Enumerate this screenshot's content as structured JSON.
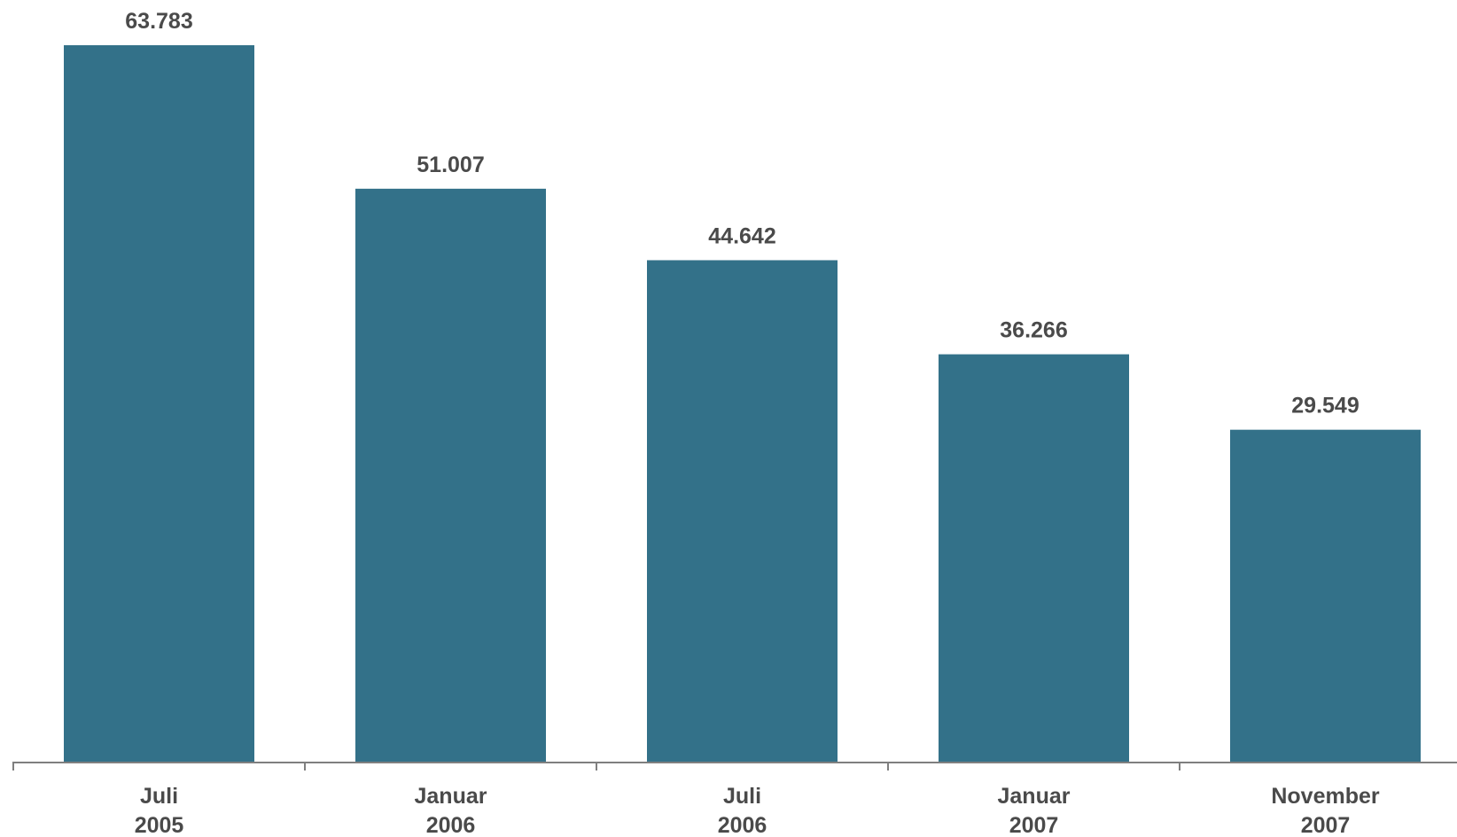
{
  "chart_data": {
    "type": "bar",
    "categories": [
      [
        "Juli",
        "2005"
      ],
      [
        "Januar",
        "2006"
      ],
      [
        "Juli",
        "2006"
      ],
      [
        "Januar",
        "2007"
      ],
      [
        "November",
        "2007"
      ]
    ],
    "values": [
      63783,
      51007,
      44642,
      36266,
      29549
    ],
    "data_labels": [
      "63.783",
      "51.007",
      "44.642",
      "36.266",
      "29.549"
    ],
    "title": "",
    "xlabel": "",
    "ylabel": "",
    "ylim": [
      0,
      63783
    ],
    "grid": false,
    "legend": "none",
    "colors": {
      "bar": "#337189",
      "axis": "#7f7f7f",
      "text": "#4a4a4a"
    }
  }
}
